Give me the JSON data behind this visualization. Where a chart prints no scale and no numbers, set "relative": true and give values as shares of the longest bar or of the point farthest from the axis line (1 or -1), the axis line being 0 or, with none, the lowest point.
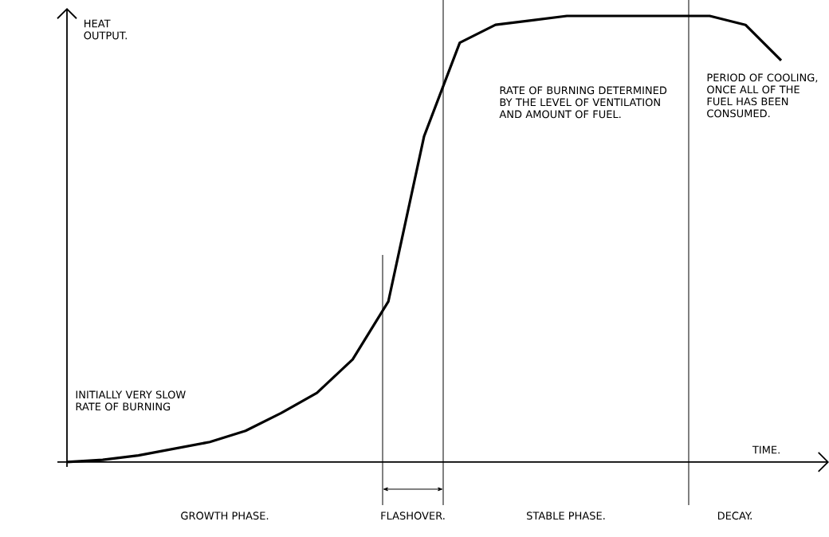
{
  "chart_data": {
    "type": "line",
    "relative": true,
    "xlabel": "TIME.",
    "ylabel": "HEAT OUTPUT.",
    "categories": [
      null,
      null,
      null,
      null,
      null,
      null,
      null,
      null,
      null,
      null,
      null,
      null,
      null,
      null,
      null,
      null,
      null,
      null,
      null,
      null,
      null
    ],
    "series": [
      {
        "color": "#000000",
        "values": [
          0,
          0.005,
          0.015,
          0.03,
          0.045,
          0.07,
          0.11,
          0.155,
          0.23,
          0.36,
          0.73,
          0.94,
          0.98,
          0.99,
          1,
          1,
          1,
          1,
          1,
          0.98,
          0.9
        ]
      }
    ],
    "annotations": [
      "INITIALLY VERY SLOW RATE OF BURNING",
      "RATE OF BURNING DETERMINED BY THE LEVEL OF VENTILATION AND AMOUNT OF FUEL.",
      "PERIOD OF COOLING, ONCE ALL OF THE FUEL HAS BEEN CONSUMED.",
      "GROWTH PHASE.",
      "FLASHOVER.",
      "STABLE PHASE.",
      "DECAY."
    ]
  }
}
